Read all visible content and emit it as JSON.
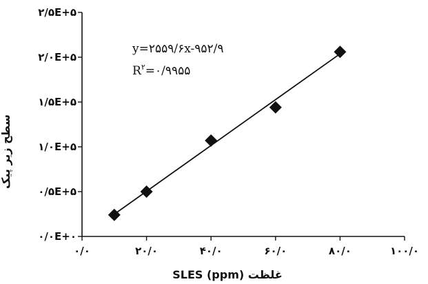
{
  "chart_data": {
    "type": "scatter",
    "title": "",
    "xlabel": "غلظت SLES (ppm)",
    "ylabel": "سطح زیر پیک",
    "xlim": [
      0,
      100
    ],
    "ylim": [
      0,
      250000
    ],
    "x_tick_labels": [
      "۰/۰",
      "۲۰/۰",
      "۴۰/۰",
      "۶۰/۰",
      "۸۰/۰",
      "۱۰۰/۰"
    ],
    "y_tick_labels": [
      "۰/۰E+۰",
      "۰/۵E+۵",
      "۱/۰E+۵",
      "۱/۵E+۵",
      "۲/۰E+۵",
      "۲/۵E+۵"
    ],
    "series": [
      {
        "x": [
          10,
          20,
          40,
          60,
          80
        ],
        "y": [
          24000,
          50000,
          107000,
          144000,
          206000
        ],
        "marker": "diamond",
        "color": "#111111"
      }
    ],
    "trendline": {
      "type": "linear",
      "x": [
        10,
        80
      ],
      "y": [
        24800,
        203800
      ],
      "color": "#111111"
    },
    "annotations": {
      "equation": "y=۲۵۵۹/۶x-۹۵۲/۹",
      "r2_prefix": "R",
      "r2_sup": "۲",
      "r2_value": "=۰/۹۹۵۵"
    },
    "grid": false,
    "legend": "none"
  }
}
